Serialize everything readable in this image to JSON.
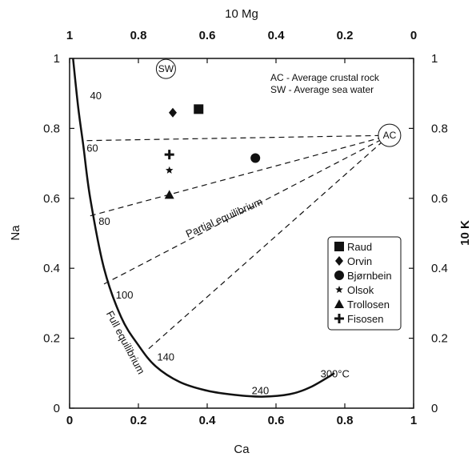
{
  "chart_data": {
    "type": "scatter",
    "xlabel": "Ca",
    "ylabel": "Na",
    "top_label": "10 Mg",
    "right_label": "10 K",
    "xlim": [
      0,
      1
    ],
    "ylim": [
      0,
      1
    ],
    "x_ticks": [
      "0",
      "0.2",
      "0.4",
      "0.6",
      "0.8",
      "1"
    ],
    "y_ticks": [
      "0",
      "0.2",
      "0.4",
      "0.6",
      "0.8",
      "1"
    ],
    "top_ticks": [
      "1",
      "0.8",
      "0.6",
      "0.4",
      "0.2",
      "0"
    ],
    "right_ticks": [
      "0",
      "0.2",
      "0.4",
      "0.6",
      "0.8",
      "1"
    ],
    "annotations": {
      "ac_marker": "AC",
      "sw_marker": "SW",
      "ac_note": "AC - Average crustal rock",
      "sw_note": "SW - Average sea water",
      "partial": "Partial equilibrium",
      "full": "Full equilibrium"
    },
    "ac_point": [
      0.93,
      0.78
    ],
    "sw_point": [
      0.28,
      0.97
    ],
    "full_equilibrium_curve": [
      [
        0.01,
        1.0
      ],
      [
        0.025,
        0.86
      ],
      [
        0.04,
        0.75
      ],
      [
        0.06,
        0.6
      ],
      [
        0.1,
        0.4
      ],
      [
        0.15,
        0.26
      ],
      [
        0.2,
        0.18
      ],
      [
        0.25,
        0.12
      ],
      [
        0.32,
        0.075
      ],
      [
        0.4,
        0.05
      ],
      [
        0.48,
        0.038
      ],
      [
        0.56,
        0.033
      ],
      [
        0.64,
        0.04
      ],
      [
        0.7,
        0.06
      ],
      [
        0.77,
        0.1
      ]
    ],
    "temperature_labels": [
      {
        "label": "40",
        "x": 0.05,
        "y": 0.895
      },
      {
        "label": "60",
        "x": 0.04,
        "y": 0.745
      },
      {
        "label": "80",
        "x": 0.075,
        "y": 0.535
      },
      {
        "label": "100",
        "x": 0.125,
        "y": 0.325
      },
      {
        "label": "140",
        "x": 0.245,
        "y": 0.148
      },
      {
        "label": "240",
        "x": 0.52,
        "y": 0.052
      },
      {
        "label": "300°C",
        "x": 0.72,
        "y": 0.1
      }
    ],
    "partial_lines": [
      {
        "from": [
          0.05,
          0.765
        ],
        "to": [
          0.93,
          0.78
        ]
      },
      {
        "from": [
          0.06,
          0.55
        ],
        "to": [
          0.93,
          0.78
        ]
      },
      {
        "from": [
          0.1,
          0.355
        ],
        "to": [
          0.93,
          0.78
        ]
      },
      {
        "from": [
          0.23,
          0.17
        ],
        "to": [
          0.93,
          0.78
        ]
      }
    ],
    "series": [
      {
        "name": "Raud",
        "marker": "square",
        "points": [
          [
            0.375,
            0.855
          ]
        ]
      },
      {
        "name": "Orvin",
        "marker": "diamond",
        "points": [
          [
            0.3,
            0.845
          ]
        ]
      },
      {
        "name": "Bjørnbein",
        "marker": "circle",
        "points": [
          [
            0.54,
            0.715
          ]
        ]
      },
      {
        "name": "Olsok",
        "marker": "star",
        "points": [
          [
            0.29,
            0.68
          ]
        ]
      },
      {
        "name": "Trollosen",
        "marker": "triangle",
        "points": [
          [
            0.29,
            0.61
          ]
        ]
      },
      {
        "name": "Fisosen",
        "marker": "plus",
        "points": [
          [
            0.29,
            0.725
          ]
        ]
      }
    ]
  }
}
